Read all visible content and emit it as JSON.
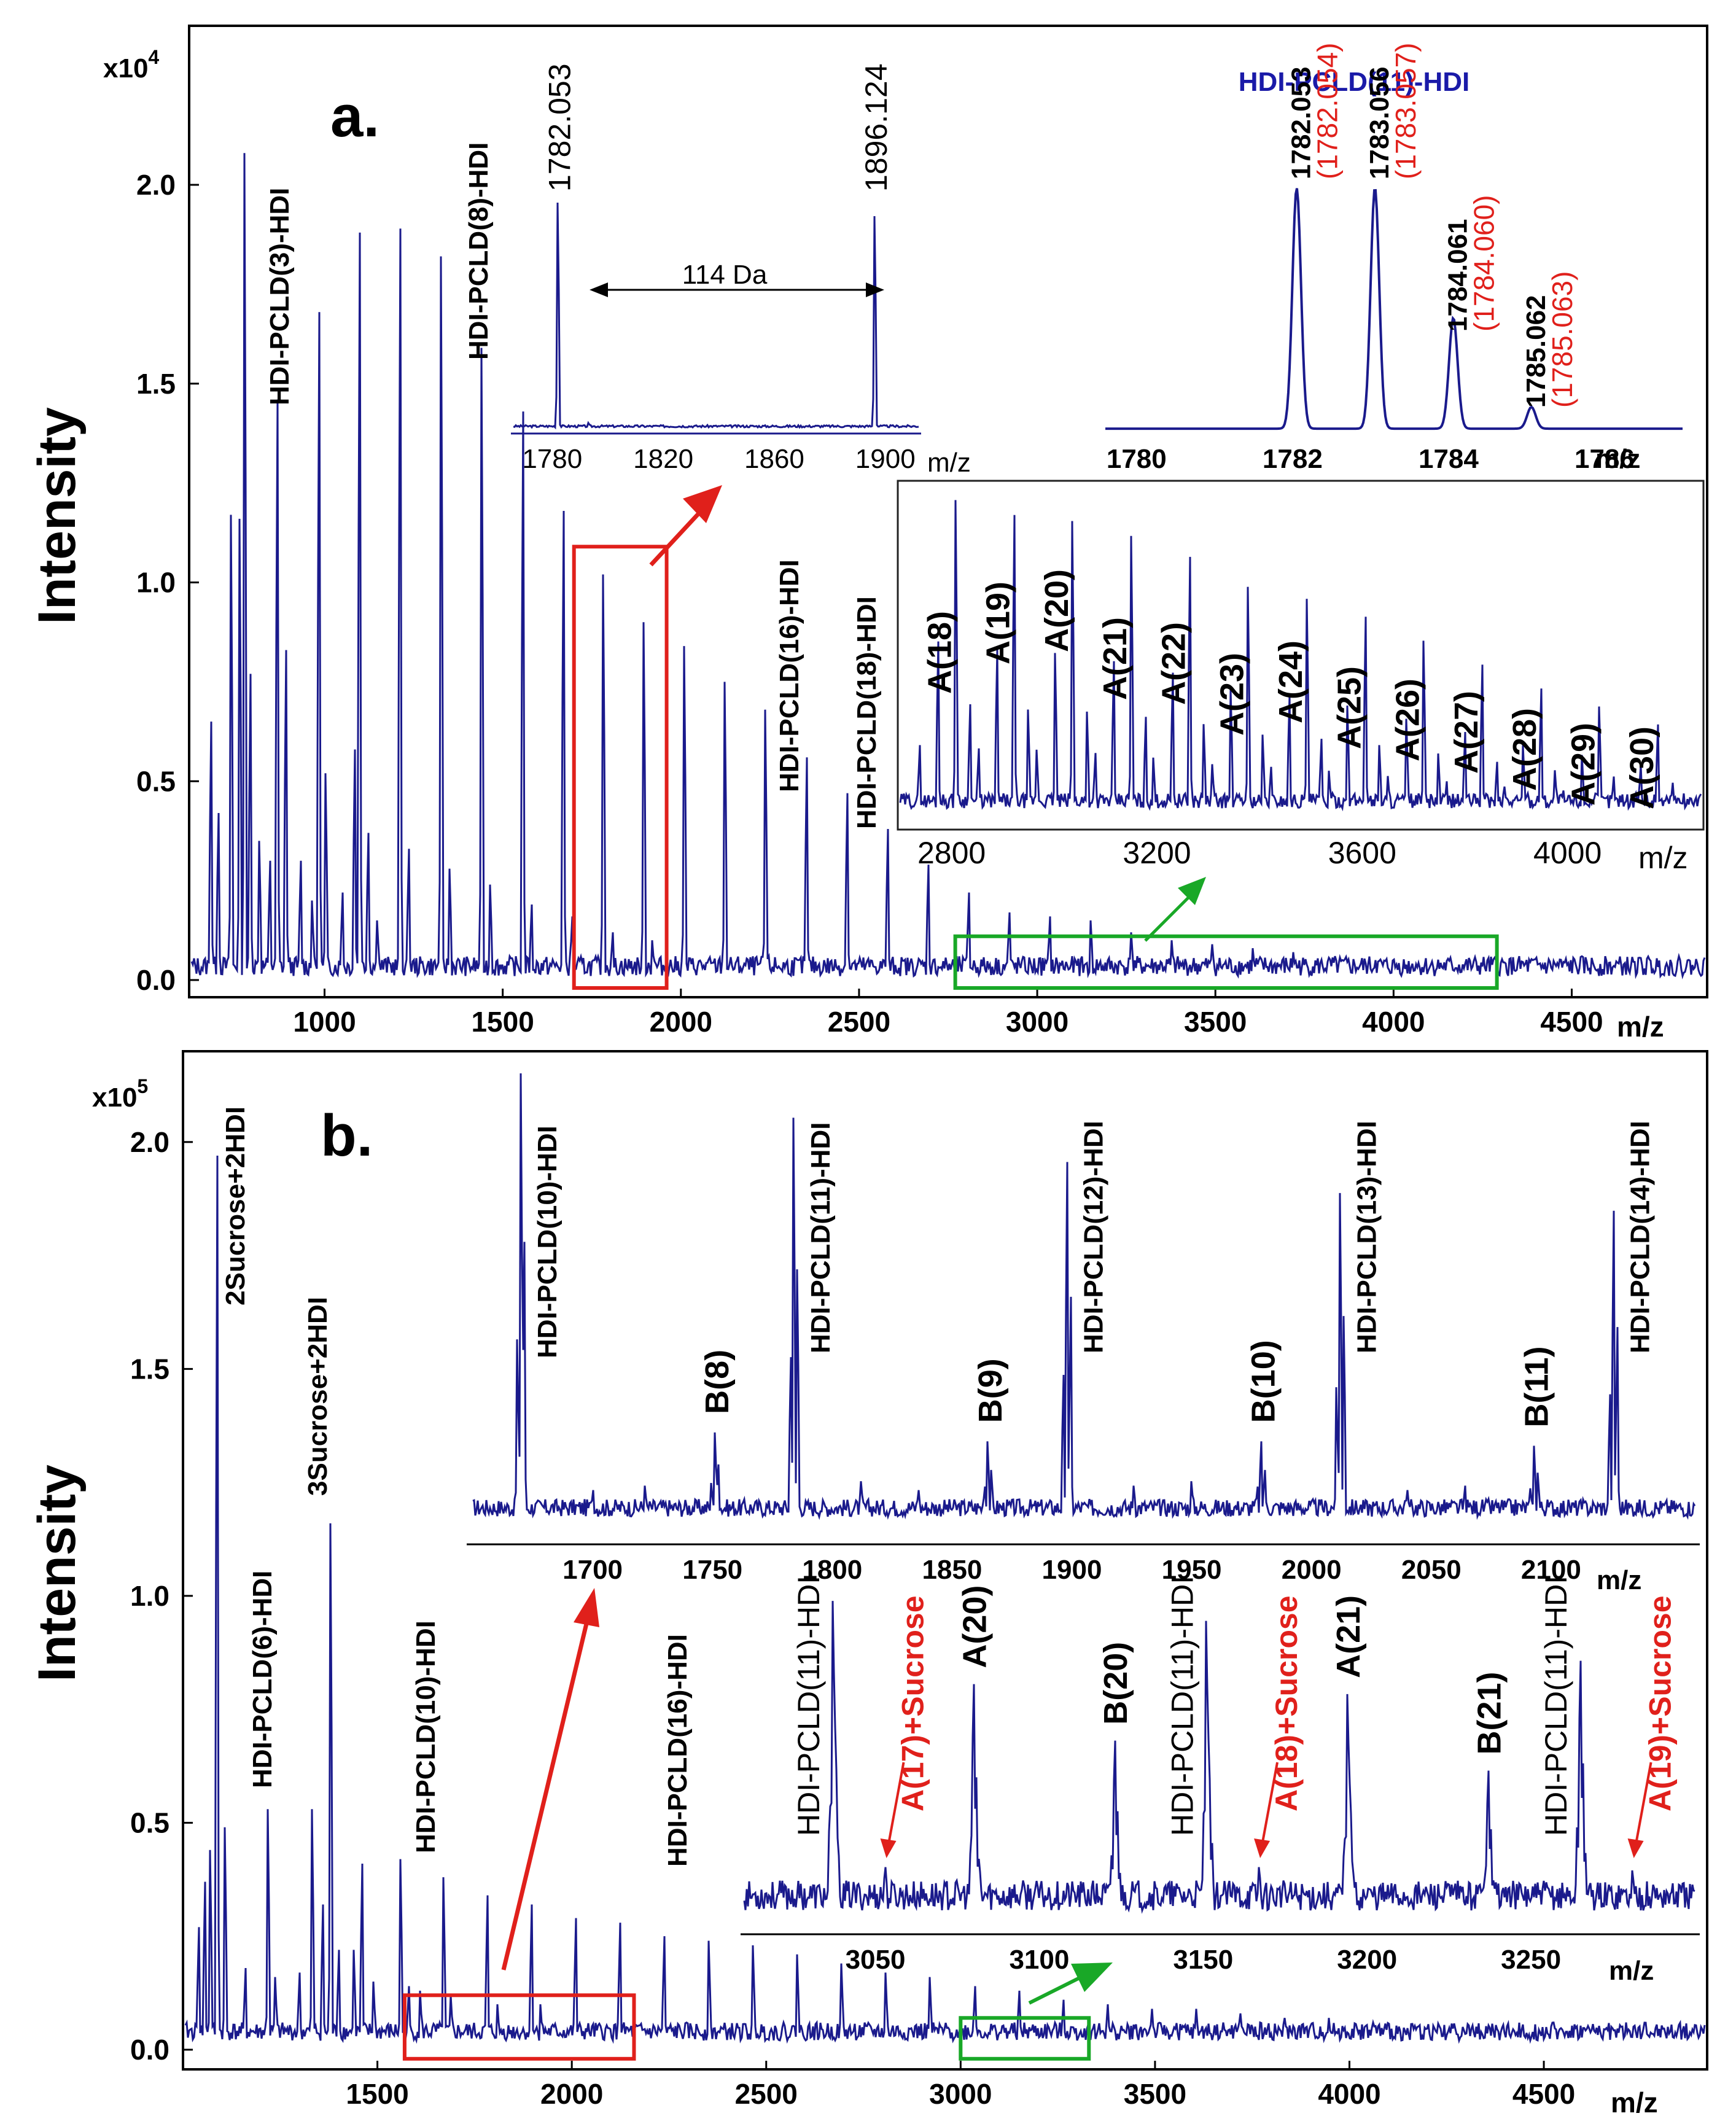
{
  "chart_data": [
    {
      "type": "line",
      "panel_label": "a.",
      "ylabel": "Intensity",
      "xlabel": "m/z",
      "y_multiplier": "x10",
      "y_multiplier_exp": "4",
      "xlim": [
        620,
        4880
      ],
      "ylim": [
        0,
        2.4
      ],
      "xticks": [
        "1000",
        "1500",
        "2000",
        "2500",
        "3000",
        "3500",
        "4000",
        "4500"
      ],
      "yticks": [
        "0.0",
        "0.5",
        "1.0",
        "1.5",
        "2.0"
      ],
      "line_color": "#1a1a8c",
      "series_A_peaks": [
        [
          682,
          0.65
        ],
        [
          702,
          0.42
        ],
        [
          738,
          1.17
        ],
        [
          762,
          1.16
        ],
        [
          776,
          2.08
        ],
        [
          792,
          0.77
        ],
        [
          818,
          0.35
        ],
        [
          846,
          0.3
        ],
        [
          868,
          1.46
        ],
        [
          892,
          0.83
        ],
        [
          932,
          0.3
        ],
        [
          966,
          0.2
        ],
        [
          984,
          1.68
        ],
        [
          1004,
          0.52
        ],
        [
          1050,
          0.22
        ],
        [
          1084,
          0.58
        ],
        [
          1098,
          1.88
        ],
        [
          1122,
          0.37
        ],
        [
          1148,
          0.15
        ],
        [
          1212,
          1.89
        ],
        [
          1236,
          0.33
        ],
        [
          1328,
          1.82
        ],
        [
          1352,
          0.28
        ],
        [
          1442,
          1.59
        ],
        [
          1466,
          0.24
        ],
        [
          1556,
          1.43
        ],
        [
          1580,
          0.19
        ],
        [
          1670,
          1.18
        ],
        [
          1694,
          0.16
        ],
        [
          1782,
          1.02
        ],
        [
          1808,
          0.12
        ],
        [
          1896,
          0.9
        ],
        [
          1920,
          0.1
        ],
        [
          2010,
          0.84
        ],
        [
          2124,
          0.75
        ],
        [
          2238,
          0.68
        ],
        [
          2352,
          0.56
        ],
        [
          2466,
          0.47
        ],
        [
          2580,
          0.38
        ],
        [
          2694,
          0.29
        ],
        [
          2808,
          0.22
        ],
        [
          2922,
          0.17
        ],
        [
          3036,
          0.16
        ],
        [
          3150,
          0.15
        ],
        [
          3264,
          0.12
        ],
        [
          3378,
          0.1
        ],
        [
          3492,
          0.09
        ],
        [
          3606,
          0.08
        ],
        [
          3720,
          0.07
        ],
        [
          3834,
          0.06
        ],
        [
          3948,
          0.05
        ],
        [
          4062,
          0.04
        ],
        [
          4176,
          0.03
        ],
        [
          4290,
          0.02
        ]
      ],
      "annotations": [
        {
          "label": "HDI-PCLD(3)-HDI",
          "x": 868,
          "y": 1.46
        },
        {
          "label": "HDI-PCLD(8)-HDI",
          "x": 1442,
          "y": 1.59
        },
        {
          "label": "HDI-PCLD(16)-HDI",
          "x": 2352,
          "y": 0.56
        },
        {
          "label": "HDI-PCLD(18)-HDI",
          "x": 2580,
          "y": 0.38
        }
      ],
      "highlight_boxes": [
        {
          "color": "#e0201b",
          "x_range": [
            1700,
            1960
          ],
          "y_range": [
            -0.02,
            1.09
          ]
        },
        {
          "color": "#19a827",
          "x_range": [
            2770,
            4290
          ],
          "y_range": [
            -0.02,
            0.11
          ]
        }
      ],
      "inset_zoom": {
        "xlim": [
          1766,
          1912
        ],
        "xticks": [
          "1780",
          "1820",
          "1860",
          "1900"
        ],
        "x_unit": "m/z",
        "peaks": [
          {
            "x": 1782.053,
            "y": 1.0,
            "label": "1782.053"
          },
          {
            "x": 1896.124,
            "y": 0.94,
            "label": "1896.124"
          }
        ],
        "spacing_label": "114 Da"
      },
      "inset_isotope": {
        "title": "HDI-PCLD(11)-HDI",
        "xlim": [
          1779.6,
          1787.0
        ],
        "xticks": [
          "1780",
          "1782",
          "1784",
          "1786"
        ],
        "x_unit": "m/z",
        "peaks": [
          {
            "x": 1782.053,
            "y": 1.0,
            "obs": "1782.053",
            "calc": "(1782.054)"
          },
          {
            "x": 1783.056,
            "y": 1.0,
            "obs": "1783.056",
            "calc": "(1783.057)"
          },
          {
            "x": 1784.061,
            "y": 0.46,
            "obs": "1784.061",
            "calc": "(1784.060)"
          },
          {
            "x": 1785.062,
            "y": 0.09,
            "obs": "1785.062",
            "calc": "(1785.063)"
          }
        ]
      },
      "inset_highmass": {
        "xlim": [
          2700,
          4260
        ],
        "xticks": [
          "2800",
          "3200",
          "3600",
          "4000"
        ],
        "x_unit": "m/z",
        "peaks": [
          {
            "x": 2808,
            "y": 1.05,
            "label": "A(18)"
          },
          {
            "x": 2922,
            "y": 1.0,
            "label": "A(19)"
          },
          {
            "x": 3036,
            "y": 0.98,
            "label": "A(20)"
          },
          {
            "x": 3150,
            "y": 0.93,
            "label": "A(21)"
          },
          {
            "x": 3264,
            "y": 0.86,
            "label": "A(22)"
          },
          {
            "x": 3378,
            "y": 0.76,
            "label": "A(23)"
          },
          {
            "x": 3492,
            "y": 0.72,
            "label": "A(24)"
          },
          {
            "x": 3606,
            "y": 0.66,
            "label": "A(25)"
          },
          {
            "x": 3720,
            "y": 0.58,
            "label": "A(26)"
          },
          {
            "x": 3834,
            "y": 0.5,
            "label": "A(27)"
          },
          {
            "x": 3948,
            "y": 0.42,
            "label": "A(28)"
          },
          {
            "x": 4062,
            "y": 0.36,
            "label": "A(29)"
          },
          {
            "x": 4176,
            "y": 0.3,
            "label": "A(30)"
          }
        ]
      }
    },
    {
      "type": "line",
      "panel_label": "b.",
      "ylabel": "Intensity",
      "xlabel": "m/z",
      "y_multiplier": "x10",
      "y_multiplier_exp": "5",
      "xlim": [
        1000,
        4920
      ],
      "ylim": [
        0,
        2.2
      ],
      "xticks": [
        "1500",
        "2000",
        "2500",
        "3000",
        "3500",
        "4000",
        "4500"
      ],
      "yticks": [
        "0.0",
        "0.5",
        "1.0",
        "1.5",
        "2.0"
      ],
      "line_color": "#1a1a8c",
      "series_A_peaks": [
        [
          1040,
          0.27
        ],
        [
          1056,
          0.37
        ],
        [
          1070,
          0.44
        ],
        [
          1088,
          1.97
        ],
        [
          1108,
          0.49
        ],
        [
          1160,
          0.18
        ],
        [
          1218,
          0.53
        ],
        [
          1238,
          0.16
        ],
        [
          1300,
          0.17
        ],
        [
          1332,
          0.53
        ],
        [
          1360,
          0.32
        ],
        [
          1380,
          1.16
        ],
        [
          1400,
          0.22
        ],
        [
          1440,
          0.22
        ],
        [
          1460,
          0.41
        ],
        [
          1490,
          0.15
        ],
        [
          1560,
          0.42
        ],
        [
          1580,
          0.14
        ],
        [
          1610,
          0.13
        ],
        [
          1670,
          0.38
        ],
        [
          1690,
          0.12
        ],
        [
          1782,
          0.34
        ],
        [
          1810,
          0.1
        ],
        [
          1896,
          0.32
        ],
        [
          1920,
          0.1
        ],
        [
          2010,
          0.29
        ],
        [
          2124,
          0.28
        ],
        [
          2238,
          0.25
        ],
        [
          2352,
          0.24
        ],
        [
          2466,
          0.23
        ],
        [
          2580,
          0.21
        ],
        [
          2694,
          0.19
        ],
        [
          2808,
          0.17
        ],
        [
          2922,
          0.16
        ],
        [
          3036,
          0.14
        ],
        [
          3150,
          0.13
        ],
        [
          3264,
          0.11
        ],
        [
          3378,
          0.1
        ],
        [
          3492,
          0.09
        ],
        [
          3606,
          0.09
        ],
        [
          3720,
          0.08
        ],
        [
          3834,
          0.07
        ],
        [
          3948,
          0.07
        ],
        [
          4062,
          0.06
        ],
        [
          4176,
          0.05
        ],
        [
          4290,
          0.05
        ],
        [
          4404,
          0.04
        ],
        [
          4518,
          0.04
        ],
        [
          4632,
          0.03
        ],
        [
          4746,
          0.03
        ],
        [
          4860,
          0.02
        ]
      ],
      "annotations": [
        {
          "label": "2Sucrose+2HDI",
          "x": 1088,
          "y": 1.97
        },
        {
          "label": "3Sucrose+2HDI",
          "x": 1380,
          "y": 1.16
        },
        {
          "label": "HDI-PCLD(6)-HDI",
          "x": 1218,
          "y": 0.53
        },
        {
          "label": "HDI-PCLD(10)-HDI",
          "x": 1670,
          "y": 0.38
        },
        {
          "label": "HDI-PCLD(16)-HDI",
          "x": 2352,
          "y": 0.24
        }
      ],
      "highlight_boxes": [
        {
          "color": "#e0201b",
          "x_range": [
            1570,
            2160
          ],
          "y_range": [
            -0.02,
            0.12
          ]
        },
        {
          "color": "#19a827",
          "x_range": [
            3000,
            3330
          ],
          "y_range": [
            -0.02,
            0.07
          ]
        }
      ],
      "inset_zoom": {
        "xlim": [
          1650,
          2160
        ],
        "xticks": [
          "1700",
          "1750",
          "1800",
          "1850",
          "1900",
          "1950",
          "2000",
          "2050",
          "2100"
        ],
        "x_unit": "m/z",
        "peaks": [
          {
            "x": 1670,
            "y": 1.0,
            "label": "HDI-PCLD(10)-HDI"
          },
          {
            "x": 1751,
            "y": 0.19,
            "label": "B(8)"
          },
          {
            "x": 1784,
            "y": 0.9,
            "label": "HDI-PCLD(11)-HDI"
          },
          {
            "x": 1865,
            "y": 0.17,
            "label": "B(9)"
          },
          {
            "x": 1898,
            "y": 0.8,
            "label": "HDI-PCLD(12)-HDI"
          },
          {
            "x": 1979,
            "y": 0.17,
            "label": "B(10)"
          },
          {
            "x": 2012,
            "y": 0.73,
            "label": "HDI-PCLD(13)-HDI"
          },
          {
            "x": 2093,
            "y": 0.16,
            "label": "B(11)"
          },
          {
            "x": 2126,
            "y": 0.69,
            "label": "HDI-PCLD(14)-HDI"
          }
        ]
      },
      "inset_sucrose": {
        "xlim": [
          3010,
          3300
        ],
        "xticks": [
          "3050",
          "3100",
          "3150",
          "3200",
          "3250"
        ],
        "x_unit": "m/z",
        "peaks": [
          {
            "x": 3037,
            "y": 0.95,
            "label": "HDI-PCLD(11)-HDI",
            "kind": "n"
          },
          {
            "x": 3053,
            "y": 0.15,
            "label": "A(17)+Sucrose",
            "kind": "red"
          },
          {
            "x": 3080,
            "y": 0.7,
            "label": "A(20)",
            "kind": "b"
          },
          {
            "x": 3123,
            "y": 0.53,
            "label": "B(20)",
            "kind": "b"
          },
          {
            "x": 3151,
            "y": 0.89,
            "label": "HDI-PCLD(11)-HDI",
            "kind": "n"
          },
          {
            "x": 3167,
            "y": 0.15,
            "label": "A(18)+Sucrose",
            "kind": "red"
          },
          {
            "x": 3194,
            "y": 0.67,
            "label": "A(21)",
            "kind": "b"
          },
          {
            "x": 3237,
            "y": 0.44,
            "label": "B(21)",
            "kind": "b"
          },
          {
            "x": 3265,
            "y": 0.77,
            "label": "HDI-PCLD(11)-HDI",
            "kind": "n"
          },
          {
            "x": 3281,
            "y": 0.14,
            "label": "A(19)+Sucrose",
            "kind": "red"
          }
        ]
      }
    }
  ]
}
